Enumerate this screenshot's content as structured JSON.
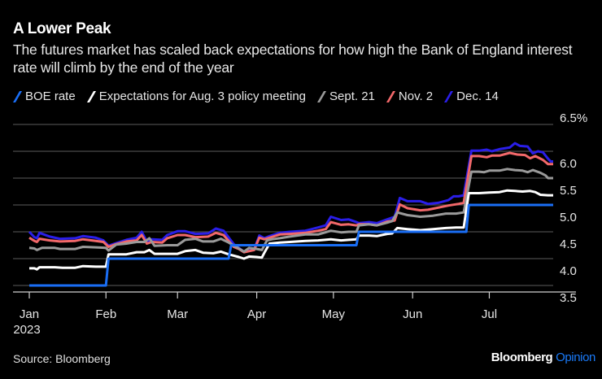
{
  "header": {
    "title": "A Lower Peak",
    "subtitle": "The futures market has scaled back expectations for how high the Bank of England interest rate will climb by the end of the year"
  },
  "footer": {
    "source": "Source: Bloomberg",
    "brand_main": "Bloomberg",
    "brand_accent": "Opinion"
  },
  "chart_data": {
    "type": "line",
    "title": "A Lower Peak",
    "subtitle": "The futures market has scaled back expectations for how high the Bank of England interest rate will climb by the end of the year",
    "xlabel": "",
    "ylabel": "",
    "x_unit": "day of year 2023",
    "xlim": [
      -1,
      209
    ],
    "ylim": [
      3.5,
      6.5
    ],
    "y_ticks": [
      3.5,
      4.0,
      4.5,
      5.0,
      5.5,
      6.0,
      6.5
    ],
    "y_tick_labels": [
      "3.5",
      "4.0",
      "4.5",
      "5.0",
      "5.5",
      "6.0",
      "6.5%"
    ],
    "x_ticks": [
      {
        "day": 2,
        "label": "Jan",
        "sublabel": "2023"
      },
      {
        "day": 32,
        "label": "Feb"
      },
      {
        "day": 60,
        "label": "Mar"
      },
      {
        "day": 91,
        "label": "Apr"
      },
      {
        "day": 121,
        "label": "May"
      },
      {
        "day": 152,
        "label": "Jun"
      },
      {
        "day": 182,
        "label": "Jul"
      }
    ],
    "grid": true,
    "y_axis_side": "right",
    "legend_placement": "top",
    "series": [
      {
        "name": "BOE rate",
        "color": "#1a6ef5",
        "step": true,
        "points": [
          [
            2,
            3.5
          ],
          [
            32,
            3.5
          ],
          [
            33,
            4.0
          ],
          [
            80,
            4.0
          ],
          [
            81,
            4.25
          ],
          [
            130,
            4.25
          ],
          [
            131,
            4.5
          ],
          [
            173,
            4.5
          ],
          [
            174,
            5.0
          ],
          [
            207,
            5.0
          ]
        ]
      },
      {
        "name": "Expectations for Aug. 3 policy meeting",
        "color": "#ffffff",
        "points": [
          [
            2,
            3.82
          ],
          [
            4,
            3.82
          ],
          [
            5,
            3.8
          ],
          [
            6,
            3.84
          ],
          [
            12,
            3.84
          ],
          [
            15,
            3.83
          ],
          [
            20,
            3.83
          ],
          [
            23,
            3.86
          ],
          [
            28,
            3.85
          ],
          [
            32,
            3.85
          ],
          [
            33,
            4.08
          ],
          [
            36,
            4.08
          ],
          [
            40,
            4.08
          ],
          [
            44,
            4.12
          ],
          [
            47,
            4.12
          ],
          [
            49,
            4.16
          ],
          [
            51,
            4.09
          ],
          [
            56,
            4.09
          ],
          [
            60,
            4.09
          ],
          [
            63,
            4.14
          ],
          [
            67,
            4.16
          ],
          [
            70,
            4.11
          ],
          [
            74,
            4.1
          ],
          [
            77,
            4.13
          ],
          [
            80,
            4.08
          ],
          [
            84,
            4.03
          ],
          [
            86,
            4.0
          ],
          [
            88,
            4.04
          ],
          [
            91,
            4.03
          ],
          [
            93,
            4.02
          ],
          [
            94,
            4.11
          ],
          [
            96,
            4.28
          ],
          [
            100,
            4.3
          ],
          [
            104,
            4.31
          ],
          [
            110,
            4.33
          ],
          [
            115,
            4.34
          ],
          [
            120,
            4.36
          ],
          [
            124,
            4.34
          ],
          [
            127,
            4.35
          ],
          [
            130,
            4.36
          ],
          [
            131,
            4.43
          ],
          [
            135,
            4.43
          ],
          [
            138,
            4.42
          ],
          [
            142,
            4.46
          ],
          [
            144,
            4.47
          ],
          [
            146,
            4.57
          ],
          [
            150,
            4.55
          ],
          [
            155,
            4.53
          ],
          [
            160,
            4.55
          ],
          [
            165,
            4.57
          ],
          [
            169,
            4.58
          ],
          [
            172,
            4.58
          ],
          [
            174,
            5.22
          ],
          [
            178,
            5.22
          ],
          [
            182,
            5.23
          ],
          [
            186,
            5.24
          ],
          [
            189,
            5.27
          ],
          [
            192,
            5.26
          ],
          [
            195,
            5.25
          ],
          [
            198,
            5.26
          ],
          [
            200,
            5.24
          ],
          [
            202,
            5.19
          ],
          [
            205,
            5.18
          ],
          [
            207,
            5.18
          ]
        ]
      },
      {
        "name": "Sept. 21",
        "color": "#9a9a9a",
        "points": [
          [
            2,
            4.2
          ],
          [
            4,
            4.19
          ],
          [
            5,
            4.16
          ],
          [
            7,
            4.2
          ],
          [
            12,
            4.2
          ],
          [
            14,
            4.18
          ],
          [
            20,
            4.18
          ],
          [
            23,
            4.22
          ],
          [
            28,
            4.21
          ],
          [
            32,
            4.2
          ],
          [
            33,
            4.15
          ],
          [
            36,
            4.26
          ],
          [
            40,
            4.28
          ],
          [
            44,
            4.31
          ],
          [
            47,
            4.31
          ],
          [
            49,
            4.38
          ],
          [
            51,
            4.24
          ],
          [
            56,
            4.25
          ],
          [
            60,
            4.25
          ],
          [
            63,
            4.35
          ],
          [
            67,
            4.37
          ],
          [
            70,
            4.32
          ],
          [
            74,
            4.32
          ],
          [
            77,
            4.37
          ],
          [
            80,
            4.3
          ],
          [
            84,
            4.19
          ],
          [
            86,
            4.13
          ],
          [
            88,
            4.2
          ],
          [
            91,
            4.18
          ],
          [
            93,
            4.16
          ],
          [
            95,
            4.34
          ],
          [
            97,
            4.36
          ],
          [
            100,
            4.38
          ],
          [
            104,
            4.41
          ],
          [
            110,
            4.45
          ],
          [
            115,
            4.45
          ],
          [
            120,
            4.52
          ],
          [
            124,
            4.49
          ],
          [
            127,
            4.5
          ],
          [
            130,
            4.5
          ],
          [
            131,
            4.62
          ],
          [
            135,
            4.64
          ],
          [
            138,
            4.62
          ],
          [
            142,
            4.67
          ],
          [
            144,
            4.7
          ],
          [
            146,
            4.86
          ],
          [
            150,
            4.81
          ],
          [
            155,
            4.78
          ],
          [
            160,
            4.8
          ],
          [
            165,
            4.84
          ],
          [
            169,
            4.84
          ],
          [
            172,
            4.86
          ],
          [
            175,
            5.62
          ],
          [
            178,
            5.62
          ],
          [
            180,
            5.61
          ],
          [
            182,
            5.64
          ],
          [
            186,
            5.64
          ],
          [
            189,
            5.67
          ],
          [
            192,
            5.65
          ],
          [
            195,
            5.64
          ],
          [
            197,
            5.61
          ],
          [
            199,
            5.65
          ],
          [
            202,
            5.6
          ],
          [
            204,
            5.55
          ],
          [
            205,
            5.5
          ],
          [
            207,
            5.5
          ]
        ]
      },
      {
        "name": "Nov. 2",
        "color": "#f2686a",
        "points": [
          [
            2,
            4.39
          ],
          [
            4,
            4.33
          ],
          [
            5,
            4.31
          ],
          [
            6,
            4.37
          ],
          [
            10,
            4.34
          ],
          [
            14,
            4.32
          ],
          [
            20,
            4.33
          ],
          [
            23,
            4.36
          ],
          [
            28,
            4.33
          ],
          [
            31,
            4.31
          ],
          [
            33,
            4.22
          ],
          [
            36,
            4.27
          ],
          [
            40,
            4.32
          ],
          [
            44,
            4.34
          ],
          [
            46,
            4.44
          ],
          [
            48,
            4.28
          ],
          [
            50,
            4.31
          ],
          [
            54,
            4.3
          ],
          [
            56,
            4.38
          ],
          [
            60,
            4.44
          ],
          [
            63,
            4.44
          ],
          [
            67,
            4.4
          ],
          [
            72,
            4.41
          ],
          [
            75,
            4.48
          ],
          [
            78,
            4.44
          ],
          [
            82,
            4.22
          ],
          [
            84,
            4.18
          ],
          [
            86,
            4.12
          ],
          [
            88,
            4.14
          ],
          [
            90,
            4.16
          ],
          [
            92,
            4.39
          ],
          [
            94,
            4.36
          ],
          [
            96,
            4.39
          ],
          [
            100,
            4.45
          ],
          [
            104,
            4.46
          ],
          [
            110,
            4.48
          ],
          [
            115,
            4.52
          ],
          [
            118,
            4.55
          ],
          [
            120,
            4.68
          ],
          [
            124,
            4.63
          ],
          [
            127,
            4.64
          ],
          [
            130,
            4.62
          ],
          [
            131,
            4.64
          ],
          [
            135,
            4.64
          ],
          [
            138,
            4.62
          ],
          [
            142,
            4.69
          ],
          [
            145,
            4.71
          ],
          [
            147,
            5.01
          ],
          [
            150,
            4.94
          ],
          [
            155,
            4.9
          ],
          [
            158,
            4.91
          ],
          [
            162,
            4.95
          ],
          [
            166,
            4.99
          ],
          [
            170,
            5.02
          ],
          [
            172,
            5.04
          ],
          [
            175,
            5.91
          ],
          [
            178,
            5.91
          ],
          [
            181,
            5.89
          ],
          [
            183,
            5.92
          ],
          [
            186,
            5.92
          ],
          [
            190,
            5.97
          ],
          [
            193,
            5.94
          ],
          [
            196,
            5.93
          ],
          [
            198,
            5.87
          ],
          [
            200,
            5.91
          ],
          [
            203,
            5.84
          ],
          [
            205,
            5.76
          ],
          [
            207,
            5.76
          ]
        ]
      },
      {
        "name": "Dec. 14",
        "color": "#2a1ee8",
        "points": [
          [
            2,
            4.5
          ],
          [
            4,
            4.4
          ],
          [
            5,
            4.38
          ],
          [
            6,
            4.48
          ],
          [
            10,
            4.41
          ],
          [
            14,
            4.37
          ],
          [
            20,
            4.38
          ],
          [
            23,
            4.42
          ],
          [
            28,
            4.39
          ],
          [
            31,
            4.34
          ],
          [
            33,
            4.24
          ],
          [
            36,
            4.29
          ],
          [
            40,
            4.35
          ],
          [
            44,
            4.39
          ],
          [
            46,
            4.5
          ],
          [
            48,
            4.32
          ],
          [
            50,
            4.36
          ],
          [
            54,
            4.35
          ],
          [
            56,
            4.44
          ],
          [
            60,
            4.51
          ],
          [
            63,
            4.51
          ],
          [
            67,
            4.46
          ],
          [
            72,
            4.47
          ],
          [
            75,
            4.56
          ],
          [
            78,
            4.52
          ],
          [
            82,
            4.27
          ],
          [
            84,
            4.2
          ],
          [
            86,
            4.13
          ],
          [
            88,
            4.15
          ],
          [
            90,
            4.17
          ],
          [
            92,
            4.43
          ],
          [
            94,
            4.38
          ],
          [
            96,
            4.42
          ],
          [
            100,
            4.48
          ],
          [
            104,
            4.5
          ],
          [
            110,
            4.52
          ],
          [
            115,
            4.58
          ],
          [
            118,
            4.62
          ],
          [
            120,
            4.78
          ],
          [
            124,
            4.72
          ],
          [
            127,
            4.73
          ],
          [
            130,
            4.68
          ],
          [
            131,
            4.66
          ],
          [
            135,
            4.68
          ],
          [
            138,
            4.66
          ],
          [
            142,
            4.73
          ],
          [
            145,
            4.78
          ],
          [
            147,
            5.13
          ],
          [
            150,
            5.07
          ],
          [
            155,
            5.07
          ],
          [
            158,
            5.02
          ],
          [
            162,
            5.04
          ],
          [
            166,
            5.09
          ],
          [
            168,
            5.16
          ],
          [
            170,
            5.16
          ],
          [
            172,
            5.18
          ],
          [
            175,
            6.01
          ],
          [
            178,
            6.01
          ],
          [
            181,
            6.03
          ],
          [
            183,
            6.0
          ],
          [
            186,
            6.04
          ],
          [
            190,
            6.07
          ],
          [
            192,
            6.15
          ],
          [
            194,
            6.1
          ],
          [
            197,
            6.09
          ],
          [
            199,
            5.96
          ],
          [
            201,
            6.0
          ],
          [
            203,
            5.98
          ],
          [
            205,
            5.86
          ],
          [
            206,
            5.81
          ],
          [
            207,
            5.81
          ]
        ]
      }
    ]
  }
}
